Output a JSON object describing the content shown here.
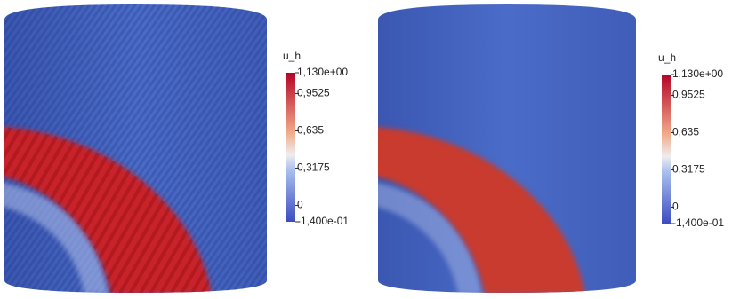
{
  "panels": [
    {
      "colorbar": {
        "title": "u_h",
        "range": [
          -0.14,
          1.13
        ],
        "ticks": [
          {
            "value": 1.13,
            "label": "1,130e+00"
          },
          {
            "value": 0.9525,
            "label": "0,9525"
          },
          {
            "value": 0.635,
            "label": "0,635"
          },
          {
            "value": 0.3175,
            "label": "0,3175"
          },
          0,
          {
            "value": -0.14,
            "label": "-1,400e-01"
          }
        ]
      }
    },
    {
      "colorbar": {
        "title": "u_h",
        "range": [
          -0.14,
          1.13
        ],
        "ticks": [
          {
            "value": 1.13,
            "label": "1,130e+00"
          },
          {
            "value": 0.9525,
            "label": "0,9525"
          },
          {
            "value": 0.635,
            "label": "0,635"
          },
          {
            "value": 0.3175,
            "label": "0,3175"
          },
          0,
          {
            "value": -0.14,
            "label": "-1,400e-01"
          }
        ]
      }
    }
  ]
}
